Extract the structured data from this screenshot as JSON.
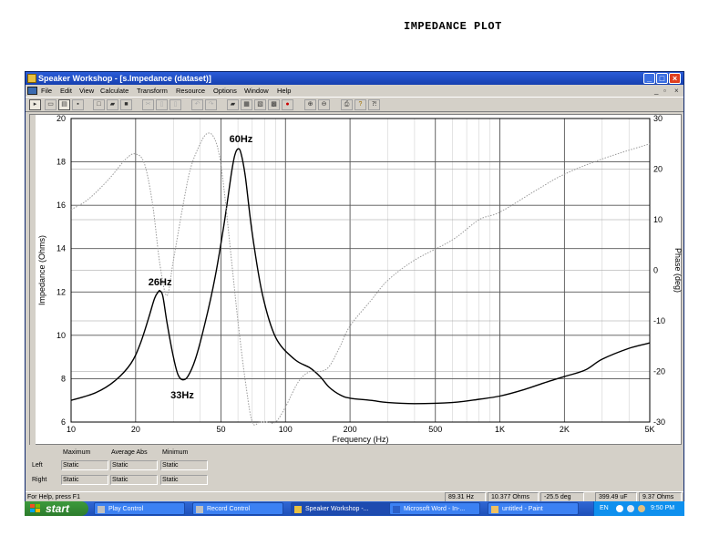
{
  "page_title": "IMPEDANCE PLOT",
  "window": {
    "title": "Speaker Workshop - [s.Impedance (dataset)]",
    "mdi_controls": [
      "_",
      "ᵟ",
      "×"
    ]
  },
  "menu": [
    "File",
    "Edit",
    "View",
    "Calculate",
    "Transform",
    "Resource",
    "Options",
    "Window",
    "Help"
  ],
  "toolbar": [
    "arrow-tool",
    "meter-tool",
    "ruler-tool",
    "dots-tool",
    "new-doc",
    "open-folder",
    "save-disk",
    "cut",
    "copy",
    "paste",
    "undo",
    "redo",
    "open-dataset",
    "chart-view",
    "chart-window",
    "screen-capture",
    "record",
    "zoom-in",
    "zoom-out",
    "print",
    "help",
    "context-help"
  ],
  "chart_data": {
    "type": "line",
    "xlabel": "Frequency (Hz)",
    "ylabel": "Impedance (Ohms)",
    "y2label": "Phase (deg)",
    "x_scale": "log",
    "xlim": [
      10,
      5000
    ],
    "ylim": [
      6,
      20
    ],
    "y2lim": [
      -30,
      30
    ],
    "x_ticks": [
      {
        "value": 10,
        "label": "10"
      },
      {
        "value": 20,
        "label": "20"
      },
      {
        "value": 50,
        "label": "50"
      },
      {
        "value": 100,
        "label": "100"
      },
      {
        "value": 200,
        "label": "200"
      },
      {
        "value": 500,
        "label": "500"
      },
      {
        "value": 1000,
        "label": "1K"
      },
      {
        "value": 2000,
        "label": "2K"
      },
      {
        "value": 5000,
        "label": "5K"
      }
    ],
    "y_ticks": [
      6,
      8,
      10,
      12,
      14,
      16,
      18,
      20
    ],
    "y2_ticks": [
      -30,
      -20,
      -10,
      0,
      10,
      20,
      30
    ],
    "grid": true,
    "series": [
      {
        "role": "impedance",
        "color": "#000000",
        "style": "solid",
        "x": [
          10,
          13,
          16,
          19,
          21,
          23,
          24.5,
          25.5,
          26,
          26.8,
          28,
          30,
          31.5,
          33,
          35,
          38,
          42,
          47,
          52,
          56,
          58,
          60,
          62,
          65,
          70,
          78,
          90,
          110,
          130,
          145,
          160,
          180,
          200,
          250,
          300,
          400,
          600,
          800,
          1000,
          1300,
          1600,
          2000,
          2500,
          3000,
          4000,
          5000
        ],
        "y": [
          7.0,
          7.35,
          7.9,
          8.7,
          9.6,
          10.8,
          11.7,
          12.0,
          12.05,
          11.8,
          10.6,
          9.0,
          8.2,
          7.95,
          8.1,
          8.9,
          10.5,
          12.7,
          15.3,
          17.5,
          18.3,
          18.6,
          18.4,
          17.3,
          14.7,
          11.9,
          9.9,
          8.9,
          8.5,
          8.1,
          7.6,
          7.25,
          7.1,
          7.0,
          6.9,
          6.85,
          6.9,
          7.05,
          7.2,
          7.5,
          7.8,
          8.1,
          8.4,
          8.9,
          9.4,
          9.65
        ]
      },
      {
        "role": "phase",
        "color": "#9a9a9a",
        "style": "dotted",
        "axis": "right",
        "x": [
          10,
          12,
          15,
          18,
          20,
          22,
          24,
          26,
          28,
          30,
          33,
          36,
          40,
          43,
          46,
          49,
          52,
          56,
          60,
          65,
          70,
          76,
          82,
          90,
          100,
          115,
          130,
          145,
          160,
          180,
          200,
          250,
          300,
          400,
          600,
          800,
          1000,
          1500,
          2000,
          3000,
          5000
        ],
        "y": [
          12,
          14,
          18,
          22,
          23,
          21,
          13,
          1,
          -5,
          2,
          12,
          20,
          25,
          27,
          26.5,
          23,
          15,
          2,
          -10,
          -22,
          -30,
          -32,
          -33,
          -30,
          -27,
          -22,
          -20,
          -20,
          -19,
          -15,
          -11,
          -6,
          -2,
          2,
          6,
          10,
          11.5,
          16,
          19,
          22,
          25
        ]
      }
    ],
    "annotations": [
      {
        "text": "60Hz",
        "x": 62,
        "y": 18.9
      },
      {
        "text": "26Hz",
        "x": 26,
        "y": 12.3
      },
      {
        "text": "33Hz",
        "x": 33,
        "y": 7.1
      }
    ]
  },
  "stats": {
    "col_headers": [
      "Maximum",
      "Average Abs",
      "Minimum"
    ],
    "rows": [
      {
        "label": "Left",
        "values": [
          "Static",
          "Static",
          "Static"
        ]
      },
      {
        "label": "Right",
        "values": [
          "Static",
          "Static",
          "Static"
        ]
      }
    ]
  },
  "status": {
    "help": "For Help, press F1",
    "freq": "89.31 Hz",
    "ohms": "10.377 Ohms",
    "deg": "-25.5 deg",
    "uf": "399.49 uF",
    "ohms2": "9.37 Ohms"
  },
  "taskbar": {
    "start": "start",
    "tasks": [
      "Play Control",
      "Record Control",
      "Speaker Workshop -...",
      "Microsoft Word - In-...",
      "untitled - Paint"
    ],
    "lang": "EN",
    "clock": "9:50 PM"
  }
}
